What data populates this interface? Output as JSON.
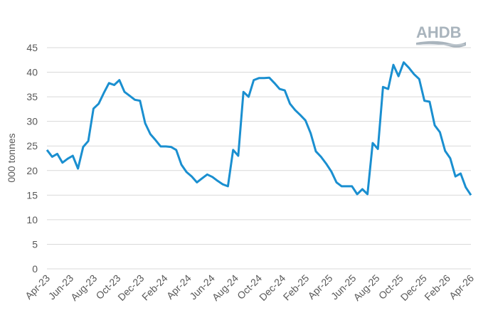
{
  "logo": {
    "text": "AHDB",
    "color": "#a9b4bd"
  },
  "chart_data": {
    "type": "line",
    "title": "",
    "xlabel": "",
    "ylabel": "000 tonnes",
    "ylim": [
      0,
      45
    ],
    "yticks": [
      0,
      5,
      10,
      15,
      20,
      25,
      30,
      35,
      40,
      45
    ],
    "grid": true,
    "legend": null,
    "line_color": "#1a8fd0",
    "x_tick_labels": [
      "Apr-23",
      "Jun-23",
      "Aug-23",
      "Oct-23",
      "Dec-23",
      "Feb-24",
      "Apr-24",
      "Jun-24",
      "Aug-24",
      "Oct-24",
      "Dec-24",
      "Feb-25",
      "Apr-25",
      "Jun-25",
      "Aug-25",
      "Oct-25",
      "Dec-25",
      "Feb-26",
      "Apr-26"
    ],
    "series": [
      {
        "name": "000 tonnes",
        "values": [
          24.2,
          22.8,
          23.4,
          21.6,
          22.4,
          23.0,
          20.4,
          24.8,
          26.0,
          32.6,
          33.6,
          35.8,
          37.8,
          37.4,
          38.4,
          36.0,
          35.2,
          34.4,
          34.2,
          29.6,
          27.4,
          26.2,
          24.9,
          24.9,
          24.8,
          24.2,
          21.2,
          19.7,
          18.8,
          17.6,
          18.4,
          19.2,
          18.7,
          17.9,
          17.2,
          16.8,
          24.2,
          23.0,
          36.0,
          35.0,
          38.4,
          38.8,
          38.8,
          38.9,
          37.8,
          36.6,
          36.3,
          33.6,
          32.3,
          31.3,
          30.2,
          27.6,
          23.9,
          22.8,
          21.4,
          19.8,
          17.6,
          16.8,
          16.8,
          16.8,
          15.2,
          16.2,
          15.2,
          25.6,
          24.4,
          37.0,
          36.6,
          41.5,
          39.2,
          42.0,
          40.9,
          39.6,
          38.6,
          34.2,
          34.0,
          29.2,
          27.8,
          24.0,
          22.5,
          18.8,
          19.4,
          16.6,
          15.0
        ]
      }
    ]
  }
}
